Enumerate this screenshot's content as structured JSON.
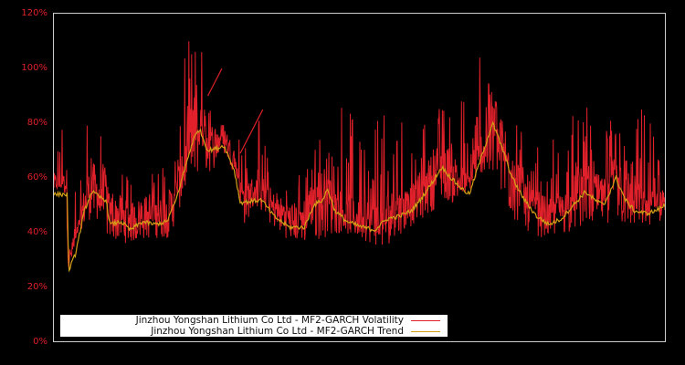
{
  "chart_data": {
    "type": "line",
    "title": "",
    "xlabel": "",
    "ylabel": "",
    "ylim": [
      0,
      120
    ],
    "y_ticks": [
      "0%",
      "20%",
      "40%",
      "60%",
      "80%",
      "100%",
      "120%"
    ],
    "y_tick_values": [
      0,
      20,
      40,
      60,
      80,
      100,
      120
    ],
    "x_ticks": [],
    "grid": false,
    "background": "#000000",
    "axis_color": "#cccccc",
    "tick_label_color": "#e0202a",
    "legend_position": "lower-left",
    "series": [
      {
        "name": "Jinzhou Yongshan Lithium Co Ltd - MF2-GARCH Volatility",
        "color": "#e0202a",
        "description": "Noisy daily volatility with spikes; approximate envelope (x = fraction of time range, base/peak in %)",
        "envelope": [
          [
            0.0,
            54,
            92
          ],
          [
            0.02,
            54,
            80
          ],
          [
            0.024,
            24,
            40
          ],
          [
            0.04,
            40,
            70
          ],
          [
            0.06,
            45,
            88
          ],
          [
            0.085,
            38,
            70
          ],
          [
            0.12,
            36,
            62
          ],
          [
            0.16,
            38,
            66
          ],
          [
            0.19,
            38,
            70
          ],
          [
            0.215,
            55,
            110
          ],
          [
            0.24,
            62,
            112
          ],
          [
            0.26,
            62,
            80
          ],
          [
            0.275,
            70,
            100
          ],
          [
            0.3,
            60,
            85
          ],
          [
            0.31,
            42,
            70
          ],
          [
            0.33,
            50,
            86
          ],
          [
            0.35,
            44,
            70
          ],
          [
            0.38,
            38,
            60
          ],
          [
            0.41,
            36,
            62
          ],
          [
            0.44,
            38,
            80
          ],
          [
            0.47,
            40,
            88
          ],
          [
            0.5,
            38,
            84
          ],
          [
            0.54,
            34,
            86
          ],
          [
            0.57,
            40,
            82
          ],
          [
            0.61,
            46,
            80
          ],
          [
            0.64,
            52,
            90
          ],
          [
            0.66,
            50,
            84
          ],
          [
            0.7,
            62,
            110
          ],
          [
            0.73,
            52,
            90
          ],
          [
            0.76,
            42,
            80
          ],
          [
            0.8,
            38,
            72
          ],
          [
            0.84,
            40,
            82
          ],
          [
            0.87,
            42,
            86
          ],
          [
            0.9,
            44,
            84
          ],
          [
            0.93,
            42,
            80
          ],
          [
            0.96,
            42,
            86
          ],
          [
            1.0,
            44,
            74
          ]
        ]
      },
      {
        "name": "Jinzhou Yongshan Lithium Co Ltd - MF2-GARCH Trend",
        "color": "#d4a017",
        "points": [
          [
            0.0,
            54
          ],
          [
            0.022,
            54
          ],
          [
            0.024,
            26
          ],
          [
            0.035,
            32
          ],
          [
            0.05,
            48
          ],
          [
            0.062,
            55
          ],
          [
            0.075,
            53
          ],
          [
            0.085,
            52
          ],
          [
            0.092,
            43
          ],
          [
            0.11,
            44
          ],
          [
            0.125,
            41
          ],
          [
            0.145,
            44
          ],
          [
            0.165,
            43
          ],
          [
            0.185,
            44
          ],
          [
            0.2,
            52
          ],
          [
            0.215,
            64
          ],
          [
            0.228,
            74
          ],
          [
            0.238,
            78
          ],
          [
            0.252,
            70
          ],
          [
            0.27,
            71
          ],
          [
            0.278,
            72
          ],
          [
            0.295,
            63
          ],
          [
            0.305,
            51
          ],
          [
            0.34,
            52
          ],
          [
            0.35,
            49
          ],
          [
            0.36,
            46
          ],
          [
            0.385,
            42
          ],
          [
            0.41,
            42
          ],
          [
            0.425,
            50
          ],
          [
            0.44,
            52
          ],
          [
            0.448,
            56
          ],
          [
            0.46,
            48
          ],
          [
            0.48,
            44
          ],
          [
            0.505,
            42
          ],
          [
            0.525,
            41
          ],
          [
            0.545,
            45
          ],
          [
            0.565,
            46
          ],
          [
            0.585,
            48
          ],
          [
            0.6,
            52
          ],
          [
            0.618,
            58
          ],
          [
            0.635,
            64
          ],
          [
            0.65,
            60
          ],
          [
            0.668,
            56
          ],
          [
            0.68,
            54
          ],
          [
            0.7,
            68
          ],
          [
            0.718,
            80
          ],
          [
            0.732,
            72
          ],
          [
            0.75,
            60
          ],
          [
            0.77,
            52
          ],
          [
            0.79,
            46
          ],
          [
            0.81,
            43
          ],
          [
            0.83,
            45
          ],
          [
            0.85,
            50
          ],
          [
            0.87,
            55
          ],
          [
            0.885,
            52
          ],
          [
            0.9,
            50
          ],
          [
            0.92,
            60
          ],
          [
            0.935,
            52
          ],
          [
            0.95,
            48
          ],
          [
            0.97,
            47
          ],
          [
            0.985,
            48
          ],
          [
            1.0,
            50
          ]
        ]
      }
    ],
    "annotations": [
      {
        "type": "straight-line-segment",
        "series": "volatility",
        "from": [
          0.252,
          90
        ],
        "to": [
          0.275,
          100
        ]
      },
      {
        "type": "straight-line-segment",
        "series": "volatility",
        "from": [
          0.305,
          69
        ],
        "to": [
          0.342,
          85
        ]
      }
    ]
  },
  "legend": {
    "items": [
      {
        "label": "Jinzhou Yongshan Lithium Co Ltd - MF2-GARCH Volatility",
        "color": "#e0202a"
      },
      {
        "label": "Jinzhou Yongshan Lithium Co Ltd - MF2-GARCH Trend",
        "color": "#d4a017"
      }
    ]
  },
  "axes": {
    "y_labels": [
      "120%",
      "100%",
      "80%",
      "60%",
      "40%",
      "20%",
      "0%"
    ]
  }
}
